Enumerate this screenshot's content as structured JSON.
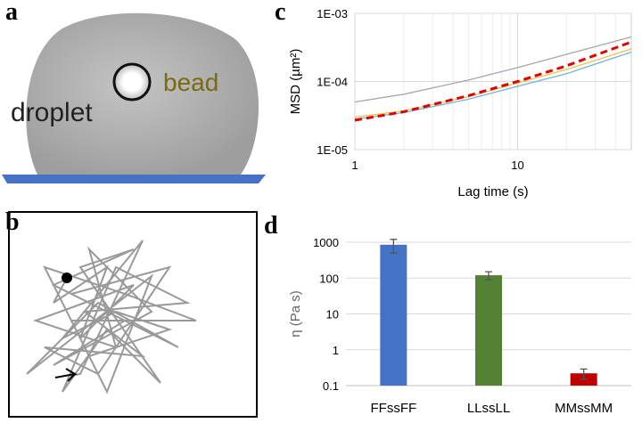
{
  "labels": [
    "a",
    "b",
    "c",
    "d"
  ],
  "illustration": {
    "droplet": "droplet",
    "bead": "bead"
  },
  "chart_data": [
    {
      "type": "line",
      "xlabel": "Lag time  (s)",
      "ylabel": "MSD (µm²)",
      "log_x": true,
      "log_y": true,
      "grid": true,
      "x": [
        1,
        2,
        5,
        10,
        20,
        50
      ],
      "xlim": [
        1,
        50
      ],
      "xticks": [
        1,
        10
      ],
      "ylim": [
        1e-05,
        0.001
      ],
      "yticks": [
        {
          "value": 1e-05,
          "label": "1E-05"
        },
        {
          "value": 0.0001,
          "label": "1E-04"
        },
        {
          "value": 0.001,
          "label": "1E-03"
        }
      ],
      "series": [
        {
          "color": "#a6a6a6",
          "values": [
            5e-05,
            6.5e-05,
            0.000105,
            0.00016,
            0.00025,
            0.00045
          ]
        },
        {
          "color": "#f2c14e",
          "values": [
            3e-05,
            3.7e-05,
            6e-05,
            9.5e-05,
            0.00015,
            0.0003
          ]
        },
        {
          "color": "#6fb3e0",
          "values": [
            2.8e-05,
            3.5e-05,
            5.5e-05,
            8.5e-05,
            0.00013,
            0.00027
          ]
        },
        {
          "color": "#e00000",
          "dashed": true,
          "values": [
            2.7e-05,
            3.6e-05,
            6.2e-05,
            0.0001,
            0.00017,
            0.00038
          ]
        }
      ]
    },
    {
      "type": "bar",
      "ylabel": "η (Pa s)",
      "log_y": true,
      "grid": true,
      "categories": [
        "FFssFF",
        "LLssLL",
        "MMssMM"
      ],
      "values": [
        850,
        120,
        0.22
      ],
      "errors": [
        350,
        30,
        0.07
      ],
      "colors": [
        "#4472c4",
        "#548235",
        "#c00000"
      ],
      "ylim": [
        0.1,
        1000
      ],
      "yticks": [
        0.1,
        1,
        10,
        100,
        1000
      ]
    }
  ]
}
